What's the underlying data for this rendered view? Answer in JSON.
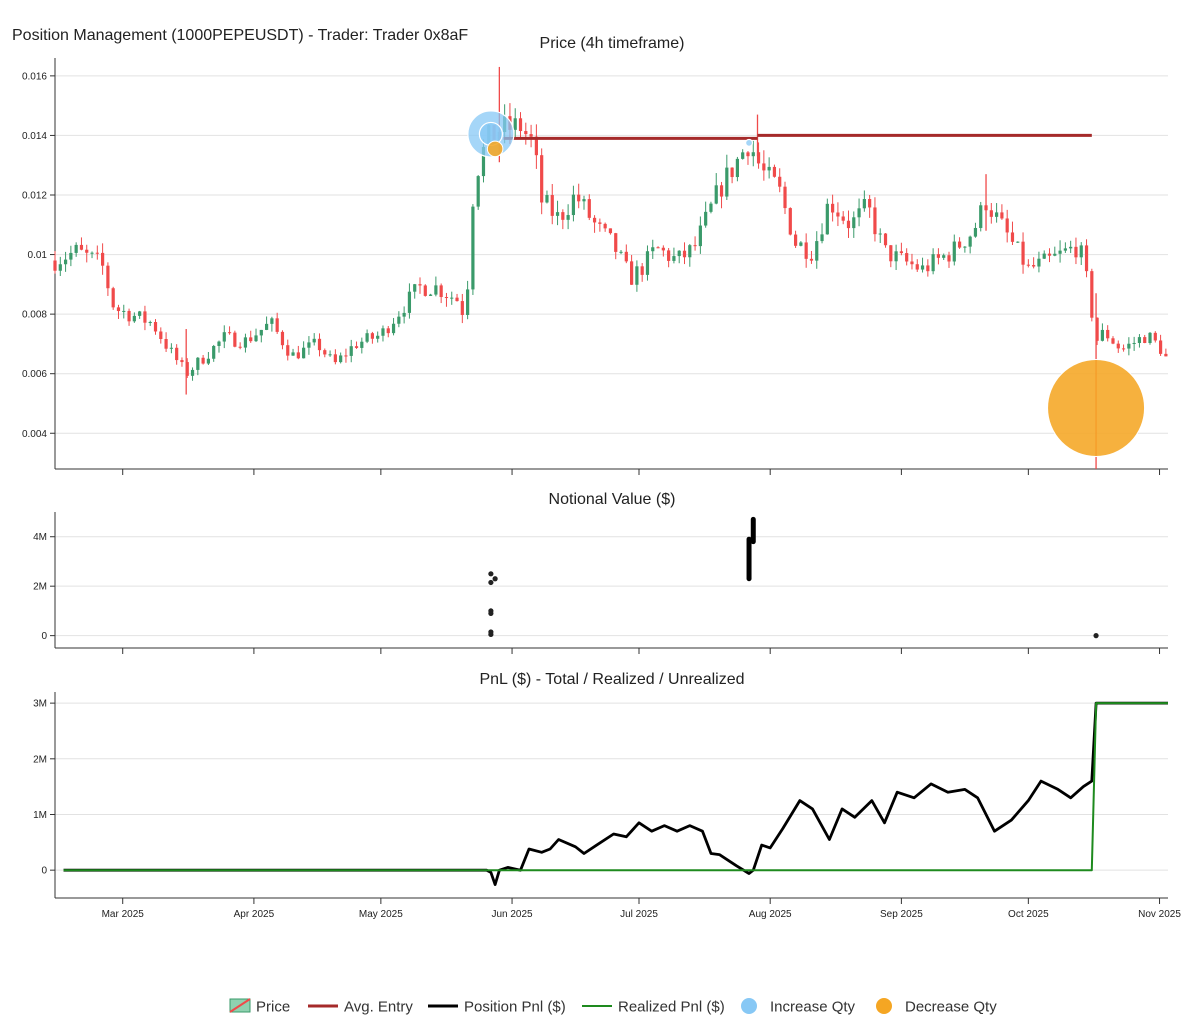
{
  "title": "Position Management (1000PEPEUSDT) - Trader: Trader 0x8aF",
  "colors": {
    "up": "#3a9a6a",
    "down": "#f04a4a",
    "avg_entry": "#a52a2a",
    "position_pnl": "#000000",
    "realized_pnl": "#1e8a1e",
    "increase": "#87c8f5",
    "decrease": "#f5a623",
    "grid": "#e2e2e2"
  },
  "x_axis": {
    "start": "2025-02-13",
    "end": "2025-11-03",
    "ticks": [
      {
        "date": "2025-03-01",
        "label": "Mar 2025"
      },
      {
        "date": "2025-04-01",
        "label": "Apr 2025"
      },
      {
        "date": "2025-05-01",
        "label": "May 2025"
      },
      {
        "date": "2025-06-01",
        "label": "Jun 2025"
      },
      {
        "date": "2025-07-01",
        "label": "Jul 2025"
      },
      {
        "date": "2025-08-01",
        "label": "Aug 2025"
      },
      {
        "date": "2025-09-01",
        "label": "Sep 2025"
      },
      {
        "date": "2025-10-01",
        "label": "Oct 2025"
      },
      {
        "date": "2025-11-01",
        "label": "Nov 2025"
      }
    ]
  },
  "chart_data": [
    {
      "type": "candlestick",
      "title": "Price (4h timeframe)",
      "ylim": [
        0.0028,
        0.0166
      ],
      "yticks": [
        {
          "value": 0.004,
          "label": "0.004"
        },
        {
          "value": 0.006,
          "label": "0.006"
        },
        {
          "value": 0.008,
          "label": "0.008"
        },
        {
          "value": 0.01,
          "label": "0.01"
        },
        {
          "value": 0.012,
          "label": "0.012"
        },
        {
          "value": 0.014,
          "label": "0.014"
        },
        {
          "value": 0.016,
          "label": "0.016"
        }
      ],
      "price_path": [
        [
          "2025-02-13",
          0.0098
        ],
        [
          "2025-02-18",
          0.0101
        ],
        [
          "2025-02-24",
          0.0097
        ],
        [
          "2025-02-27",
          0.0082
        ],
        [
          "2025-03-08",
          0.0077
        ],
        [
          "2025-03-12",
          0.0068
        ],
        [
          "2025-03-16",
          0.006
        ],
        [
          "2025-03-25",
          0.0072
        ],
        [
          "2025-03-30",
          0.0071
        ],
        [
          "2025-04-05",
          0.0077
        ],
        [
          "2025-04-10",
          0.0066
        ],
        [
          "2025-04-16",
          0.007
        ],
        [
          "2025-04-20",
          0.0063
        ],
        [
          "2025-04-25",
          0.007
        ],
        [
          "2025-05-01",
          0.0073
        ],
        [
          "2025-05-06",
          0.0082
        ],
        [
          "2025-05-10",
          0.0089
        ],
        [
          "2025-05-14",
          0.0089
        ],
        [
          "2025-05-19",
          0.0085
        ],
        [
          "2025-05-21",
          0.0079
        ],
        [
          "2025-05-23",
          0.0125
        ],
        [
          "2025-05-26",
          0.0138
        ],
        [
          "2025-05-29",
          0.0142
        ],
        [
          "2025-06-03",
          0.0143
        ],
        [
          "2025-06-06",
          0.0137
        ],
        [
          "2025-06-08",
          0.0118
        ],
        [
          "2025-06-12",
          0.0112
        ],
        [
          "2025-06-16",
          0.012
        ],
        [
          "2025-06-21",
          0.0109
        ],
        [
          "2025-06-25",
          0.0103
        ],
        [
          "2025-06-29",
          0.0092
        ],
        [
          "2025-07-02",
          0.0096
        ],
        [
          "2025-07-05",
          0.0102
        ],
        [
          "2025-07-10",
          0.0098
        ],
        [
          "2025-07-14",
          0.0102
        ],
        [
          "2025-07-20",
          0.0122
        ],
        [
          "2025-07-24",
          0.0131
        ],
        [
          "2025-07-27",
          0.0138
        ],
        [
          "2025-07-30",
          0.0128
        ],
        [
          "2025-08-03",
          0.0122
        ],
        [
          "2025-08-07",
          0.0104
        ],
        [
          "2025-08-11",
          0.0101
        ],
        [
          "2025-08-15",
          0.0118
        ],
        [
          "2025-08-20",
          0.011
        ],
        [
          "2025-08-24",
          0.0116
        ],
        [
          "2025-08-28",
          0.0101
        ],
        [
          "2025-09-01",
          0.0098
        ],
        [
          "2025-09-06",
          0.0095
        ],
        [
          "2025-09-13",
          0.0101
        ],
        [
          "2025-09-18",
          0.0108
        ],
        [
          "2025-09-21",
          0.0118
        ],
        [
          "2025-09-24",
          0.0111
        ],
        [
          "2025-09-28",
          0.0102
        ],
        [
          "2025-10-01",
          0.0095
        ],
        [
          "2025-10-06",
          0.0098
        ],
        [
          "2025-10-10",
          0.0101
        ],
        [
          "2025-10-13",
          0.0103
        ],
        [
          "2025-10-15",
          0.009
        ],
        [
          "2025-10-17",
          0.0071
        ],
        [
          "2025-10-19",
          0.0074
        ],
        [
          "2025-10-23",
          0.0068
        ],
        [
          "2025-10-29",
          0.0073
        ],
        [
          "2025-11-01",
          0.0069
        ],
        [
          "2025-11-03",
          0.0064
        ]
      ],
      "wicks": [
        [
          "2025-05-29",
          0.0163,
          0.0131
        ],
        [
          "2025-07-29",
          0.0147,
          0.0133
        ],
        [
          "2025-10-17",
          0.0087,
          0.0028
        ],
        [
          "2025-03-16",
          0.0075,
          0.0053
        ],
        [
          "2025-09-21",
          0.0127,
          0.0108
        ]
      ],
      "avg_entry": [
        {
          "start": "2025-05-30",
          "end": "2025-07-29",
          "value": 0.0139
        },
        {
          "start": "2025-07-29",
          "end": "2025-10-16",
          "value": 0.014
        }
      ],
      "increase_qty": [
        {
          "date": "2025-05-27",
          "price": 0.01405,
          "size": 20
        },
        {
          "date": "2025-05-27",
          "price": 0.01405,
          "size": 10
        },
        {
          "date": "2025-07-27",
          "price": 0.01375,
          "size": 3
        }
      ],
      "decrease_qty": [
        {
          "date": "2025-05-28",
          "price": 0.01355,
          "size": 8
        },
        {
          "date": "2025-10-17",
          "price": 0.00485,
          "size": 50
        }
      ]
    },
    {
      "type": "scatter",
      "title": "Notional Value ($)",
      "ylim": [
        -500000,
        5000000
      ],
      "yticks": [
        {
          "value": 0,
          "label": "0"
        },
        {
          "value": 2000000,
          "label": "2M"
        },
        {
          "value": 4000000,
          "label": "4M"
        }
      ],
      "points": [
        [
          "2025-05-27",
          2500000
        ],
        [
          "2025-05-27",
          2150000
        ],
        [
          "2025-05-28",
          2300000
        ],
        [
          "2025-05-27",
          1000000
        ],
        [
          "2025-05-27",
          900000
        ],
        [
          "2025-05-27",
          150000
        ],
        [
          "2025-05-27",
          50000
        ],
        [
          "2025-10-17",
          0
        ]
      ],
      "segments": [
        [
          "2025-07-27",
          2300000,
          3900000
        ],
        [
          "2025-07-28",
          3800000,
          4700000
        ]
      ]
    },
    {
      "type": "line",
      "title": "PnL ($) - Total / Realized / Unrealized",
      "ylim": [
        -500000,
        3200000
      ],
      "yticks": [
        {
          "value": 0,
          "label": "0"
        },
        {
          "value": 1000000,
          "label": "1M"
        },
        {
          "value": 2000000,
          "label": "2M"
        },
        {
          "value": 3000000,
          "label": "3M"
        }
      ],
      "series": [
        {
          "name": "Position Pnl ($)",
          "points": [
            [
              "2025-02-15",
              0
            ],
            [
              "2025-05-26",
              0
            ],
            [
              "2025-05-27",
              -40000
            ],
            [
              "2025-05-28",
              -260000
            ],
            [
              "2025-05-29",
              0
            ],
            [
              "2025-05-31",
              50000
            ],
            [
              "2025-06-03",
              0
            ],
            [
              "2025-06-05",
              380000
            ],
            [
              "2025-06-08",
              320000
            ],
            [
              "2025-06-10",
              380000
            ],
            [
              "2025-06-12",
              550000
            ],
            [
              "2025-06-16",
              420000
            ],
            [
              "2025-06-18",
              300000
            ],
            [
              "2025-06-21",
              450000
            ],
            [
              "2025-06-25",
              650000
            ],
            [
              "2025-06-28",
              600000
            ],
            [
              "2025-07-01",
              850000
            ],
            [
              "2025-07-04",
              700000
            ],
            [
              "2025-07-07",
              800000
            ],
            [
              "2025-07-10",
              700000
            ],
            [
              "2025-07-13",
              800000
            ],
            [
              "2025-07-16",
              700000
            ],
            [
              "2025-07-18",
              300000
            ],
            [
              "2025-07-20",
              280000
            ],
            [
              "2025-07-24",
              80000
            ],
            [
              "2025-07-27",
              -60000
            ],
            [
              "2025-07-28",
              0
            ],
            [
              "2025-07-30",
              450000
            ],
            [
              "2025-08-01",
              400000
            ],
            [
              "2025-08-04",
              750000
            ],
            [
              "2025-08-08",
              1250000
            ],
            [
              "2025-08-11",
              1100000
            ],
            [
              "2025-08-15",
              550000
            ],
            [
              "2025-08-18",
              1100000
            ],
            [
              "2025-08-21",
              950000
            ],
            [
              "2025-08-25",
              1250000
            ],
            [
              "2025-08-28",
              850000
            ],
            [
              "2025-08-31",
              1400000
            ],
            [
              "2025-09-04",
              1300000
            ],
            [
              "2025-09-08",
              1550000
            ],
            [
              "2025-09-12",
              1400000
            ],
            [
              "2025-09-16",
              1450000
            ],
            [
              "2025-09-19",
              1300000
            ],
            [
              "2025-09-23",
              700000
            ],
            [
              "2025-09-27",
              900000
            ],
            [
              "2025-10-01",
              1250000
            ],
            [
              "2025-10-04",
              1600000
            ],
            [
              "2025-10-08",
              1450000
            ],
            [
              "2025-10-11",
              1300000
            ],
            [
              "2025-10-14",
              1500000
            ],
            [
              "2025-10-16",
              1600000
            ],
            [
              "2025-10-17",
              3000000
            ],
            [
              "2025-11-03",
              3000000
            ]
          ]
        },
        {
          "name": "Realized Pnl ($)",
          "points": [
            [
              "2025-02-15",
              0
            ],
            [
              "2025-10-16",
              0
            ],
            [
              "2025-10-17",
              3000000
            ],
            [
              "2025-11-03",
              3000000
            ]
          ]
        }
      ]
    }
  ],
  "legend": [
    {
      "key": "price",
      "label": "Price"
    },
    {
      "key": "avg_entry",
      "label": "Avg. Entry"
    },
    {
      "key": "position_pnl",
      "label": "Position Pnl ($)"
    },
    {
      "key": "realized_pnl",
      "label": "Realized Pnl ($)"
    },
    {
      "key": "increase",
      "label": "Increase Qty"
    },
    {
      "key": "decrease",
      "label": "Decrease Qty"
    }
  ]
}
